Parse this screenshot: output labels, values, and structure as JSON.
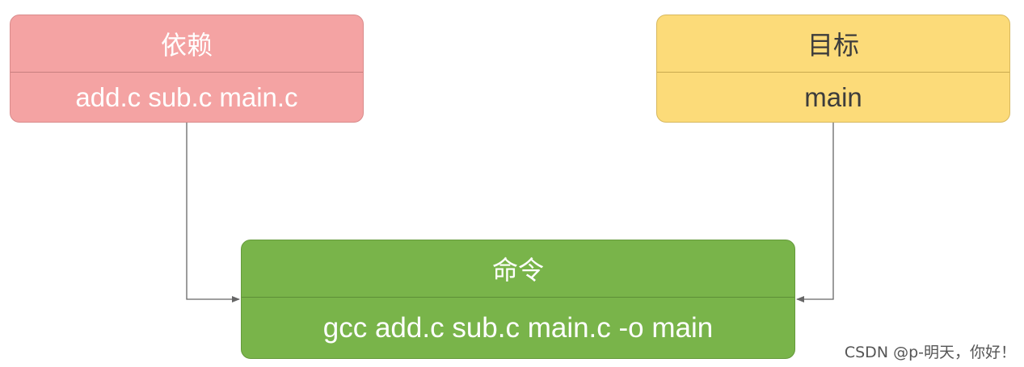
{
  "dependency": {
    "title": "依赖",
    "content": "add.c sub.c main.c"
  },
  "target": {
    "title": "目标",
    "content": "main"
  },
  "command": {
    "title": "命令",
    "content": "gcc add.c sub.c main.c -o main"
  },
  "watermark": "CSDN @p-明天，你好！",
  "colors": {
    "dependency": "#f4a3a3",
    "target": "#fcdb79",
    "command": "#79b44a",
    "connector": "#666666"
  }
}
